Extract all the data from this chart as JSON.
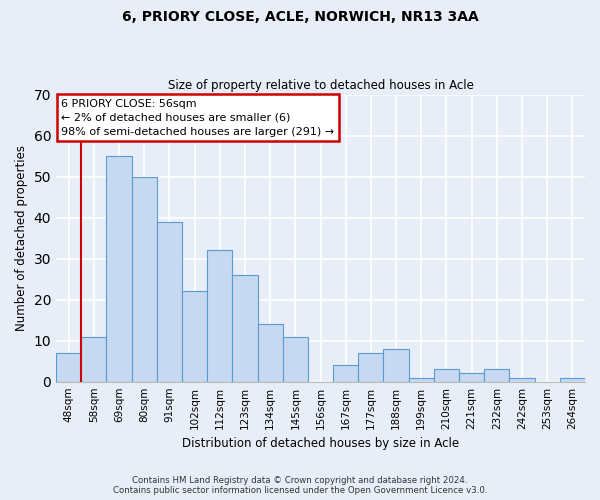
{
  "title1": "6, PRIORY CLOSE, ACLE, NORWICH, NR13 3AA",
  "title2": "Size of property relative to detached houses in Acle",
  "xlabel": "Distribution of detached houses by size in Acle",
  "ylabel": "Number of detached properties",
  "bar_labels": [
    "48sqm",
    "58sqm",
    "69sqm",
    "80sqm",
    "91sqm",
    "102sqm",
    "112sqm",
    "123sqm",
    "134sqm",
    "145sqm",
    "156sqm",
    "167sqm",
    "177sqm",
    "188sqm",
    "199sqm",
    "210sqm",
    "221sqm",
    "232sqm",
    "242sqm",
    "253sqm",
    "264sqm"
  ],
  "bar_values": [
    7,
    11,
    55,
    50,
    39,
    22,
    32,
    26,
    14,
    11,
    0,
    4,
    7,
    8,
    1,
    3,
    2,
    3,
    1,
    0,
    1
  ],
  "bar_color": "#c6d9f0",
  "bar_edge_color": "#5b9bd5",
  "ylim": [
    0,
    70
  ],
  "yticks": [
    0,
    10,
    20,
    30,
    40,
    50,
    60,
    70
  ],
  "annotation_line1": "6 PRIORY CLOSE: 56sqm",
  "annotation_line2": "← 2% of detached houses are smaller (6)",
  "annotation_line3": "98% of semi-detached houses are larger (291) →",
  "annotation_box_color": "white",
  "annotation_box_edge_color": "#cc0000",
  "footer1": "Contains HM Land Registry data © Crown copyright and database right 2024.",
  "footer2": "Contains public sector information licensed under the Open Government Licence v3.0.",
  "background_color": "#e8eef8",
  "grid_color": "#ffffff",
  "red_line_color": "#cc0000"
}
